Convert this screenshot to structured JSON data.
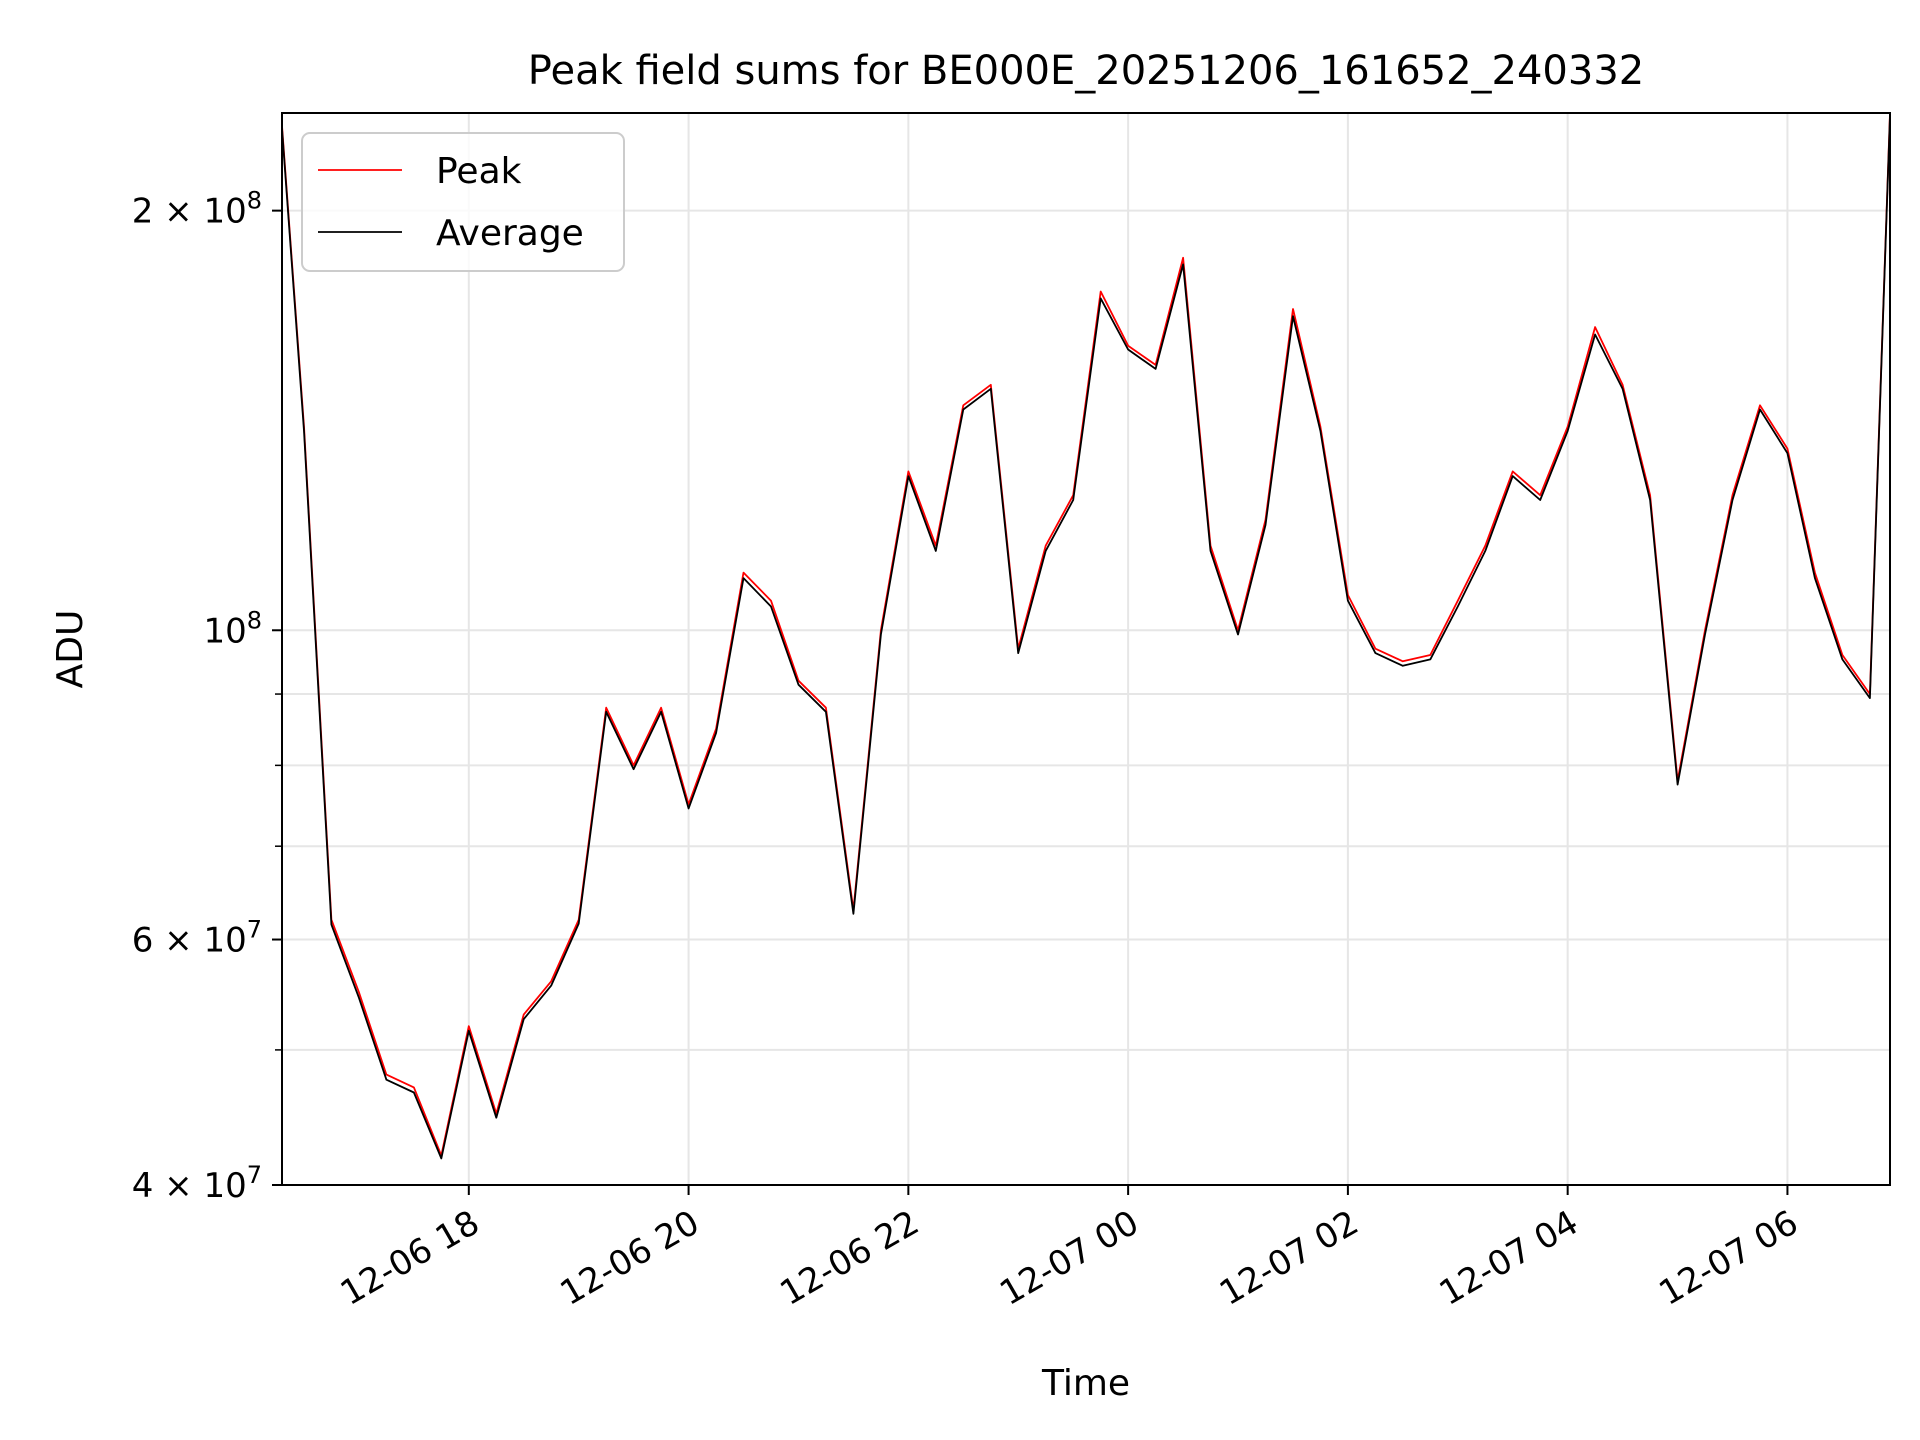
{
  "chart_data": {
    "type": "line",
    "title": "Peak field sums for BE000E_20251206_161652_240332",
    "xlabel": "Time",
    "ylabel": "ADU",
    "yscale": "log",
    "ylim": [
      40000000,
      235000000
    ],
    "xlim": [
      "2025-12-06 16:18",
      "2025-12-07 06:56"
    ],
    "grid": true,
    "legend": {
      "placement": "top-left"
    },
    "x_ticks": [
      "12-06 18",
      "12-06 20",
      "12-06 22",
      "12-07 00",
      "12-07 02",
      "12-07 04",
      "12-07 06"
    ],
    "y_ticks": [
      {
        "value": 40000000,
        "mant": "4",
        "exp": "7"
      },
      {
        "value": 60000000,
        "mant": "6",
        "exp": "7"
      },
      {
        "value": 100000000,
        "mant": "",
        "exp": "8"
      },
      {
        "value": 200000000,
        "mant": "2",
        "exp": "8"
      }
    ],
    "x": [
      "2025-12-06 16:18",
      "2025-12-06 16:30",
      "2025-12-06 16:45",
      "2025-12-06 17:00",
      "2025-12-06 17:15",
      "2025-12-06 17:30",
      "2025-12-06 17:45",
      "2025-12-06 18:00",
      "2025-12-06 18:15",
      "2025-12-06 18:30",
      "2025-12-06 18:45",
      "2025-12-06 19:00",
      "2025-12-06 19:15",
      "2025-12-06 19:30",
      "2025-12-06 19:45",
      "2025-12-06 20:00",
      "2025-12-06 20:15",
      "2025-12-06 20:30",
      "2025-12-06 20:45",
      "2025-12-06 21:00",
      "2025-12-06 21:15",
      "2025-12-06 21:30",
      "2025-12-06 21:45",
      "2025-12-06 22:00",
      "2025-12-06 22:15",
      "2025-12-06 22:30",
      "2025-12-06 22:45",
      "2025-12-06 23:00",
      "2025-12-06 23:15",
      "2025-12-06 23:30",
      "2025-12-06 23:45",
      "2025-12-07 00:00",
      "2025-12-07 00:15",
      "2025-12-07 00:30",
      "2025-12-07 00:45",
      "2025-12-07 01:00",
      "2025-12-07 01:15",
      "2025-12-07 01:30",
      "2025-12-07 01:45",
      "2025-12-07 02:00",
      "2025-12-07 02:15",
      "2025-12-07 02:30",
      "2025-12-07 02:45",
      "2025-12-07 03:00",
      "2025-12-07 03:15",
      "2025-12-07 03:30",
      "2025-12-07 03:45",
      "2025-12-07 04:00",
      "2025-12-07 04:15",
      "2025-12-07 04:30",
      "2025-12-07 04:45",
      "2025-12-07 05:00",
      "2025-12-07 05:15",
      "2025-12-07 05:30",
      "2025-12-07 05:45",
      "2025-12-07 06:00",
      "2025-12-07 06:15",
      "2025-12-07 06:30",
      "2025-12-07 06:45",
      "2025-12-07 06:56"
    ],
    "series": [
      {
        "name": "Peak",
        "color": "#ff0000",
        "values": [
          230000000,
          140000000,
          62000000,
          55000000,
          48000000,
          47000000,
          42000000,
          52000000,
          45000000,
          53000000,
          56000000,
          62000000,
          88000000,
          80000000,
          88000000,
          75000000,
          85000000,
          110000000,
          105000000,
          92000000,
          88000000,
          63000000,
          100000000,
          130000000,
          115000000,
          145000000,
          150000000,
          97000000,
          115000000,
          125000000,
          175000000,
          160000000,
          155000000,
          185000000,
          115000000,
          100000000,
          120000000,
          170000000,
          140000000,
          106000000,
          97000000,
          95000000,
          96000000,
          105000000,
          115000000,
          130000000,
          125000000,
          140000000,
          165000000,
          150000000,
          125000000,
          78000000,
          100000000,
          125000000,
          145000000,
          135000000,
          110000000,
          96000000,
          90000000,
          235000000
        ]
      },
      {
        "name": "Average",
        "color": "#000000",
        "values": [
          229000000,
          139000000,
          61500000,
          54500000,
          47600000,
          46600000,
          41800000,
          51600000,
          44700000,
          52600000,
          55600000,
          61600000,
          87400000,
          79500000,
          87400000,
          74500000,
          84400000,
          109000000,
          104000000,
          91400000,
          87400000,
          62600000,
          99300000,
          129000000,
          114000000,
          144000000,
          149000000,
          96300000,
          114000000,
          124000000,
          173000000,
          159000000,
          154000000,
          183000000,
          114000000,
          99300000,
          119000000,
          168000000,
          139000000,
          105000000,
          96300000,
          94300000,
          95300000,
          104000000,
          114000000,
          129000000,
          124000000,
          139000000,
          163000000,
          149000000,
          124000000,
          77500000,
          99300000,
          124000000,
          144000000,
          134000000,
          109000000,
          95300000,
          89400000,
          234000000
        ]
      }
    ]
  }
}
